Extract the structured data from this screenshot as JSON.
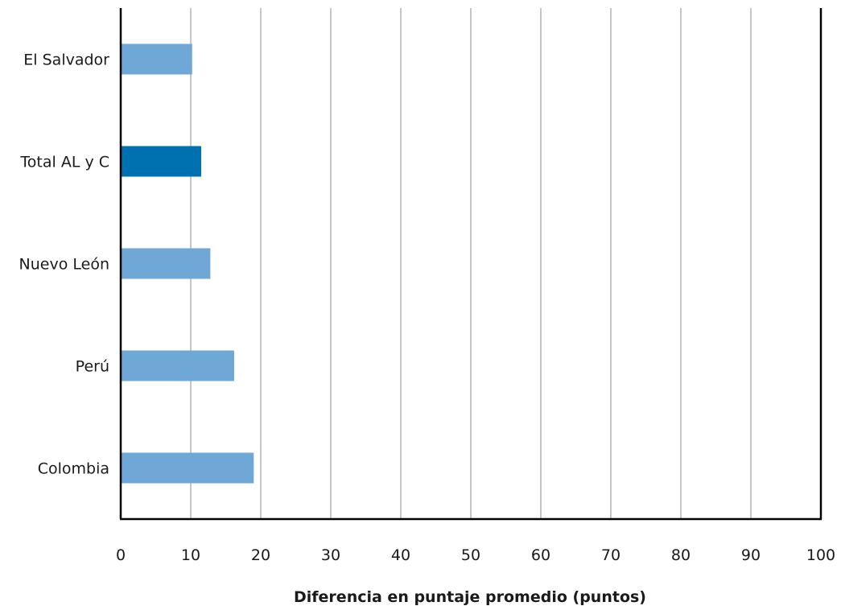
{
  "chart_data": {
    "type": "bar",
    "orientation": "horizontal",
    "categories": [
      "El Salvador",
      "Total AL y C",
      "Nuevo León",
      "Perú",
      "Colombia"
    ],
    "values": [
      10.2,
      11.5,
      12.8,
      16.2,
      19.0
    ],
    "bar_colors": [
      "#6fa7d6",
      "#0071b0",
      "#6fa7d6",
      "#6fa7d6",
      "#6fa7d6"
    ],
    "xlabel": "Diferencia en puntaje promedio (puntos)",
    "xlim": [
      0,
      100
    ],
    "xticks": [
      0,
      10,
      20,
      30,
      40,
      50,
      60,
      70,
      80,
      90,
      100
    ],
    "grid": "vertical",
    "legend": "none"
  }
}
